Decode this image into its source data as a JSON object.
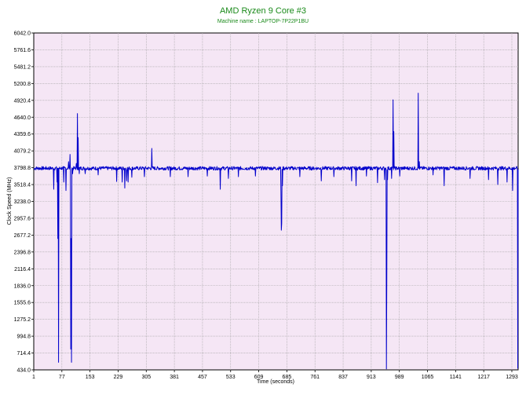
{
  "chart_data": {
    "type": "line",
    "title": "AMD Ryzen 9 Core #3",
    "subtitle": "Machine name : LAPTOP-7P22P1BU",
    "xlabel": "Time (seconds)",
    "ylabel": "Clock Speed (MHz)",
    "xlim": [
      1,
      1310
    ],
    "ylim": [
      434.0,
      6042.0
    ],
    "x_ticks": [
      "1",
      "77",
      "153",
      "229",
      "305",
      "381",
      "457",
      "533",
      "609",
      "685",
      "761",
      "837",
      "913",
      "989",
      "1065",
      "1141",
      "1217",
      "1293"
    ],
    "y_ticks": [
      "6042.0",
      "5761.6",
      "5481.2",
      "5200.8",
      "4920.4",
      "4640.0",
      "4359.6",
      "4079.2",
      "3798.8",
      "3518.4",
      "3238.0",
      "2957.6",
      "2677.2",
      "2396.8",
      "2116.4",
      "1836.0",
      "1555.6",
      "1275.2",
      "994.8",
      "714.4",
      "434.0"
    ],
    "grid": true,
    "series": [
      {
        "color": "#0000cc",
        "baseline": 3790,
        "events": [
          {
            "x": 55,
            "y": 3440
          },
          {
            "x": 64,
            "y": 3560
          },
          {
            "x": 66,
            "y": 2620
          },
          {
            "x": 68,
            "y": 560
          },
          {
            "x": 70,
            "y": 3780
          },
          {
            "x": 82,
            "y": 3560
          },
          {
            "x": 88,
            "y": 3420
          },
          {
            "x": 95,
            "y": 3900
          },
          {
            "x": 99,
            "y": 4020
          },
          {
            "x": 101,
            "y": 780
          },
          {
            "x": 102,
            "y": 2620
          },
          {
            "x": 103,
            "y": 560
          },
          {
            "x": 106,
            "y": 3700
          },
          {
            "x": 116,
            "y": 3870
          },
          {
            "x": 119,
            "y": 4700
          },
          {
            "x": 121,
            "y": 4300
          },
          {
            "x": 124,
            "y": 3700
          },
          {
            "x": 140,
            "y": 3700
          },
          {
            "x": 175,
            "y": 3680
          },
          {
            "x": 225,
            "y": 3570
          },
          {
            "x": 240,
            "y": 3560
          },
          {
            "x": 247,
            "y": 3460
          },
          {
            "x": 252,
            "y": 3580
          },
          {
            "x": 256,
            "y": 3560
          },
          {
            "x": 266,
            "y": 3640
          },
          {
            "x": 300,
            "y": 3650
          },
          {
            "x": 320,
            "y": 4120
          },
          {
            "x": 370,
            "y": 3650
          },
          {
            "x": 418,
            "y": 3650
          },
          {
            "x": 470,
            "y": 3660
          },
          {
            "x": 505,
            "y": 3440
          },
          {
            "x": 527,
            "y": 3620
          },
          {
            "x": 554,
            "y": 3650
          },
          {
            "x": 600,
            "y": 3660
          },
          {
            "x": 669,
            "y": 3400
          },
          {
            "x": 670,
            "y": 2760
          },
          {
            "x": 671,
            "y": 2870
          },
          {
            "x": 673,
            "y": 3500
          },
          {
            "x": 720,
            "y": 3650
          },
          {
            "x": 778,
            "y": 3580
          },
          {
            "x": 812,
            "y": 3650
          },
          {
            "x": 860,
            "y": 3580
          },
          {
            "x": 872,
            "y": 3500
          },
          {
            "x": 900,
            "y": 3660
          },
          {
            "x": 930,
            "y": 3550
          },
          {
            "x": 949,
            "y": 3600
          },
          {
            "x": 954,
            "y": 450
          },
          {
            "x": 955,
            "y": 1920
          },
          {
            "x": 957,
            "y": 3600
          },
          {
            "x": 968,
            "y": 3620
          },
          {
            "x": 972,
            "y": 4930
          },
          {
            "x": 974,
            "y": 4400
          },
          {
            "x": 990,
            "y": 3660
          },
          {
            "x": 1040,
            "y": 5040
          },
          {
            "x": 1043,
            "y": 3900
          },
          {
            "x": 1080,
            "y": 3680
          },
          {
            "x": 1110,
            "y": 3500
          },
          {
            "x": 1180,
            "y": 3620
          },
          {
            "x": 1230,
            "y": 3600
          },
          {
            "x": 1255,
            "y": 3520
          },
          {
            "x": 1280,
            "y": 3560
          },
          {
            "x": 1295,
            "y": 3420
          },
          {
            "x": 1309,
            "y": 460
          }
        ]
      }
    ]
  },
  "colors": {
    "title": "#1a8a1a",
    "plot_background": "#f5e6f5",
    "grid": "#a0a0a0",
    "line": "#0000cc"
  }
}
